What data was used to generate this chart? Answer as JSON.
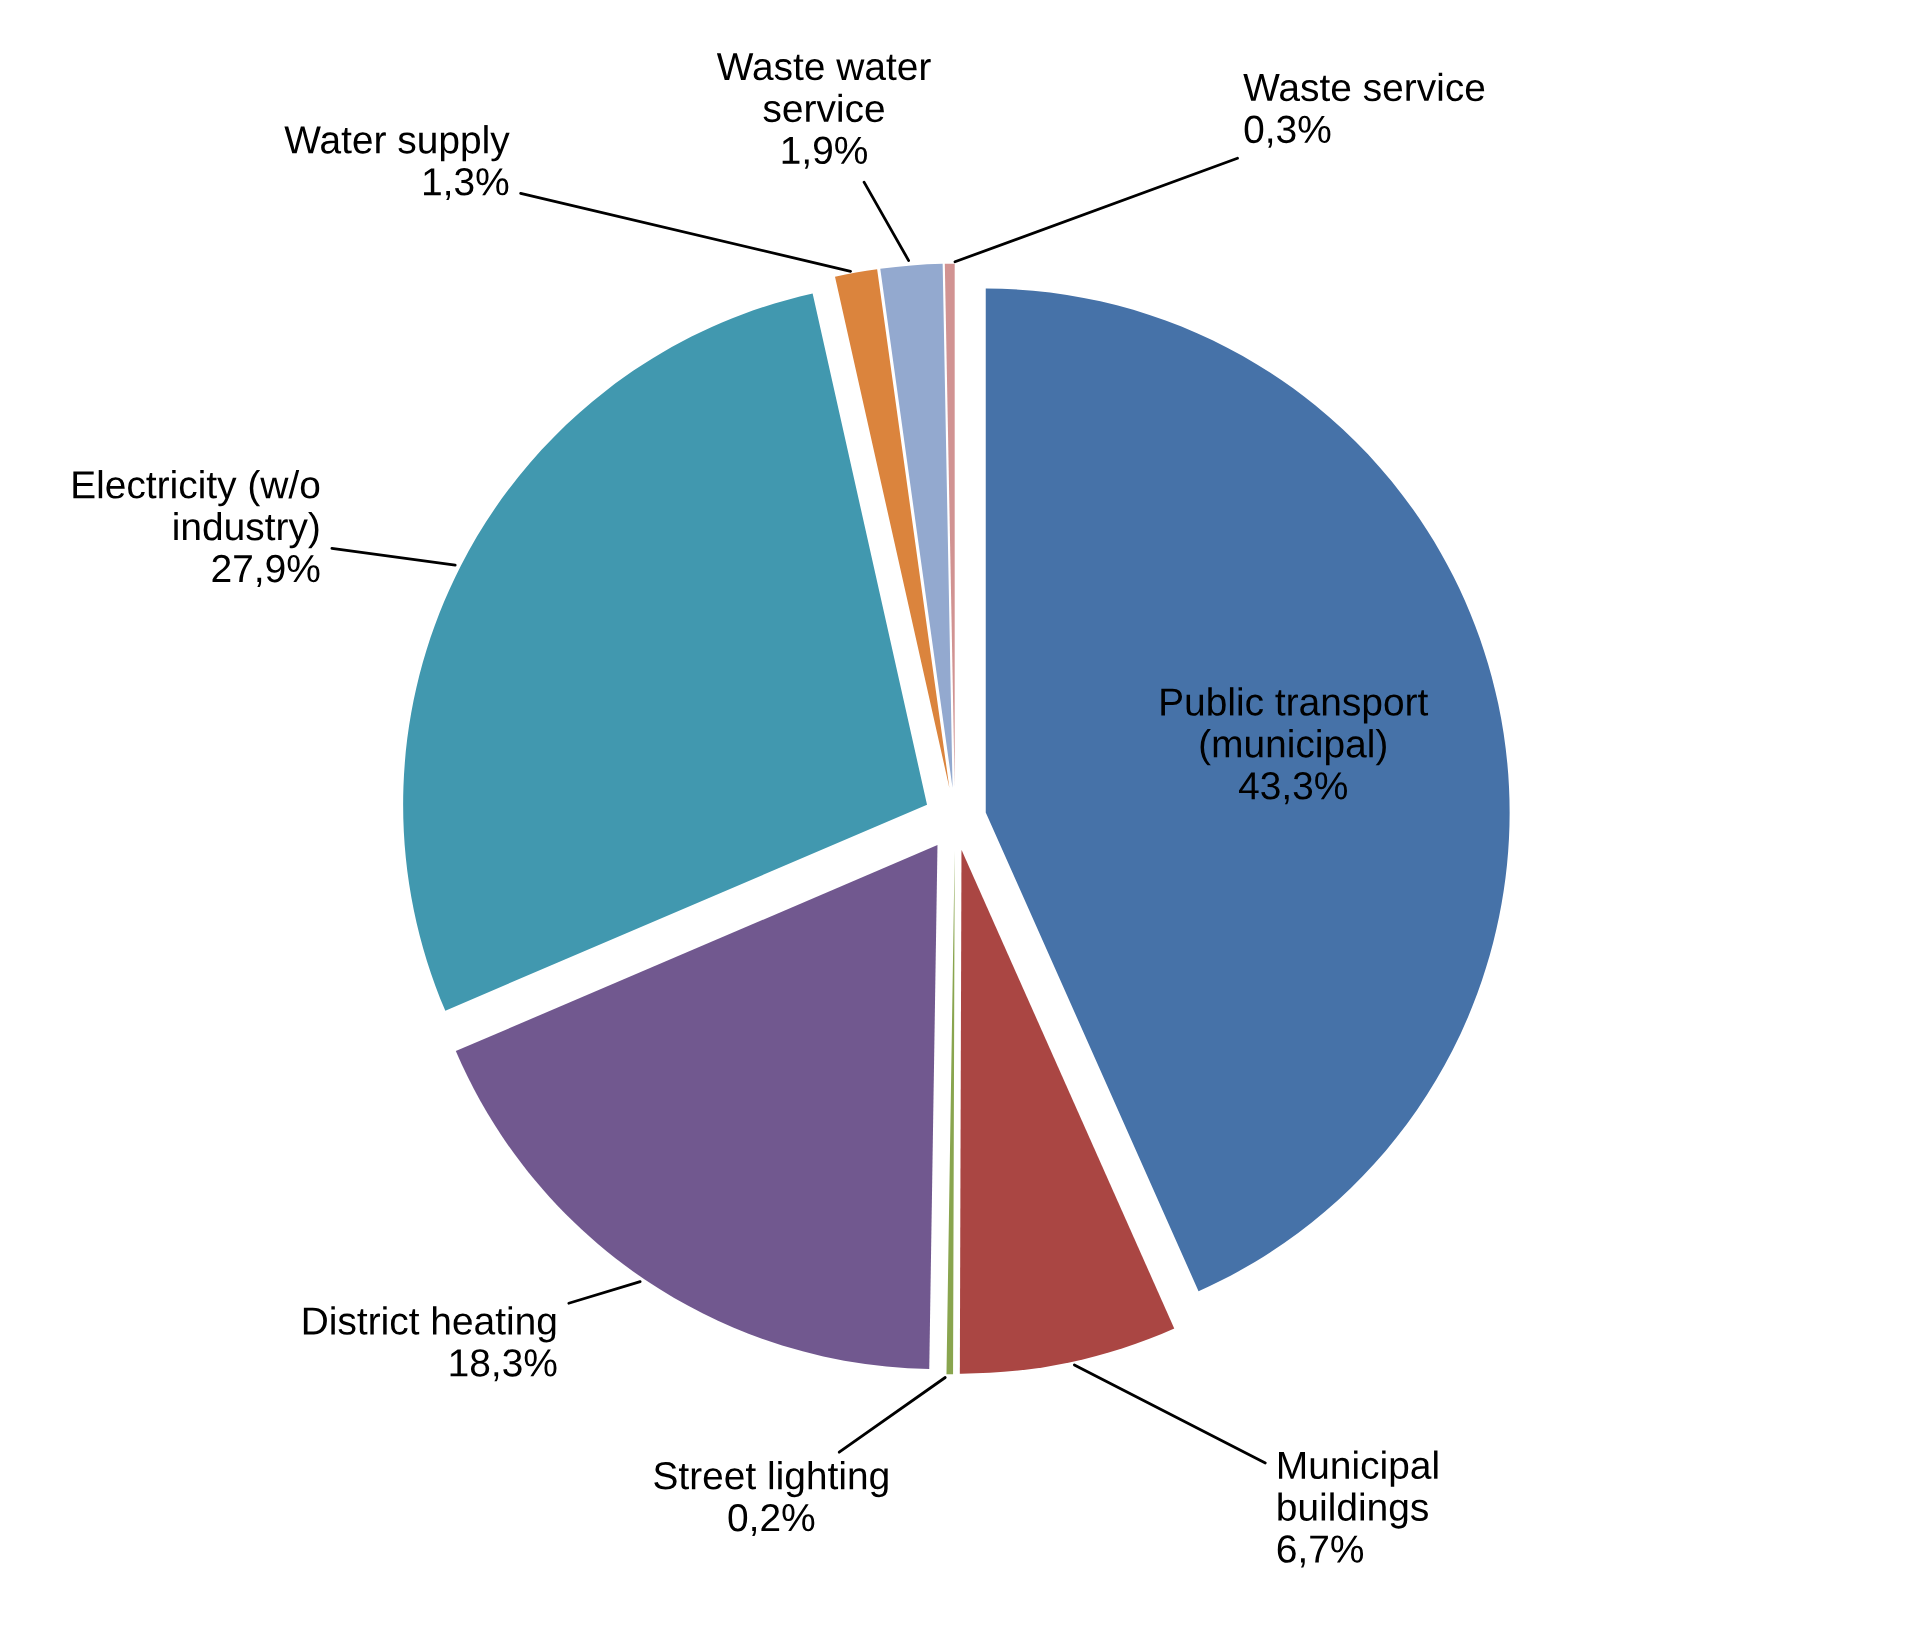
{
  "chart_data": {
    "type": "pie",
    "categories": [
      "Public transport (municipal)",
      "Municipal buildings",
      "Street lighting",
      "District heating",
      "Electricity (w/o industry)",
      "Water supply",
      "Waste water service",
      "Waste service"
    ],
    "values": [
      43.3,
      6.7,
      0.2,
      18.3,
      27.9,
      1.3,
      1.9,
      0.3
    ],
    "value_labels": [
      "43,3%",
      "6,7%",
      "0,2%",
      "18,3%",
      "27,9%",
      "1,3%",
      "1,9%",
      "0,3%"
    ],
    "colors": [
      "#4672a8",
      "#aa4643",
      "#89a54e",
      "#71588f",
      "#4198af",
      "#db843d",
      "#93a9cf",
      "#d19392"
    ],
    "legend": false
  }
}
